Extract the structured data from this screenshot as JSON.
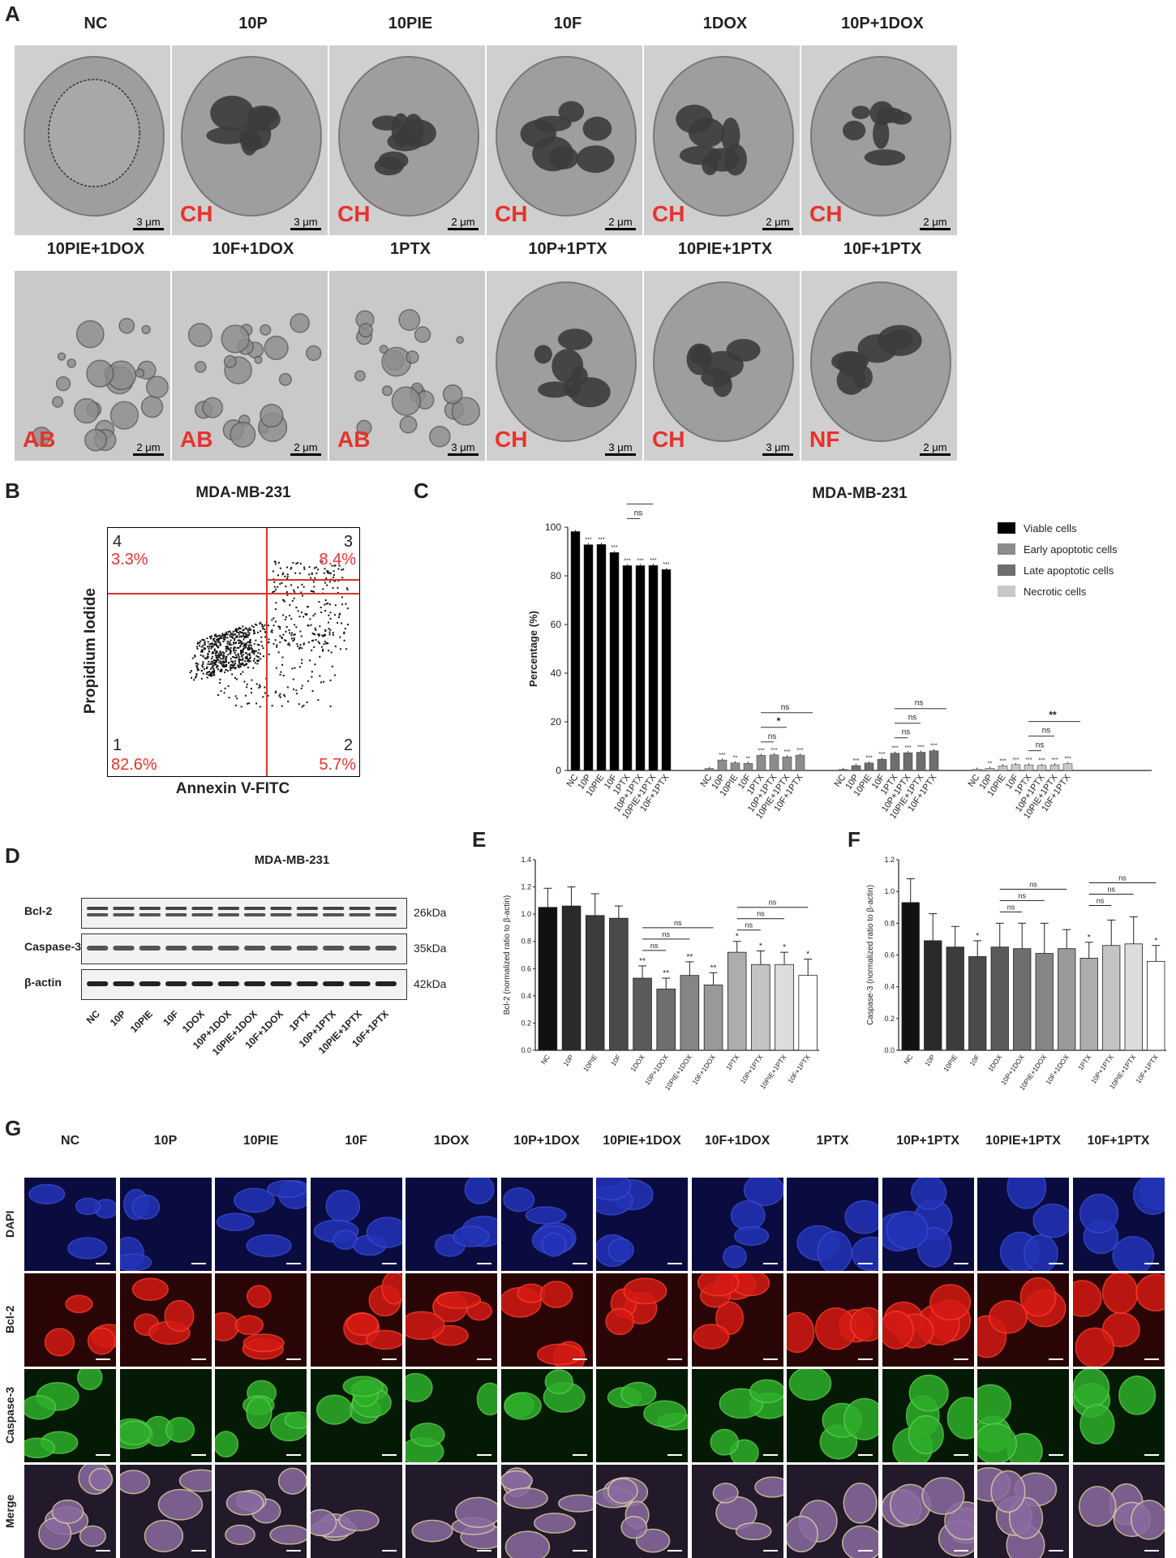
{
  "panel_letters": {
    "a": "A",
    "b": "B",
    "c": "C",
    "d": "D",
    "e": "E",
    "f": "F",
    "g": "G"
  },
  "panel_a": {
    "cells": [
      {
        "title": "NC",
        "code": "",
        "scale": "3 μm"
      },
      {
        "title": "10P",
        "code": "CH",
        "scale": "3 μm"
      },
      {
        "title": "10PIE",
        "code": "CH",
        "scale": "2 μm"
      },
      {
        "title": "10F",
        "code": "CH",
        "scale": "2 μm"
      },
      {
        "title": "1DOX",
        "code": "CH",
        "scale": "2 μm"
      },
      {
        "title": "10P+1DOX",
        "code": "CH",
        "scale": "2 μm"
      },
      {
        "title": "10PIE+1DOX",
        "code": "AB",
        "scale": "2 μm"
      },
      {
        "title": "10F+1DOX",
        "code": "AB",
        "scale": "2 μm"
      },
      {
        "title": "1PTX",
        "code": "AB",
        "scale": "3 μm"
      },
      {
        "title": "10P+1PTX",
        "code": "CH",
        "scale": "3 μm"
      },
      {
        "title": "10PIE+1PTX",
        "code": "CH",
        "scale": "3 μm"
      },
      {
        "title": "10F+1PTX",
        "code": "NF",
        "scale": "2 μm"
      }
    ]
  },
  "panel_b": {
    "title": "MDA-MB-231",
    "xlabel": "Annexin V-FITC",
    "ylabel": "Propidium Iodide",
    "quadrants": [
      {
        "num": "1",
        "pct": "82.6%"
      },
      {
        "num": "2",
        "pct": "5.7%"
      },
      {
        "num": "3",
        "pct": "8.4%"
      },
      {
        "num": "4",
        "pct": "3.3%"
      }
    ]
  },
  "panel_d": {
    "title": "MDA-MB-231",
    "bands": [
      {
        "name": "Bcl-2",
        "kda": "26kDa"
      },
      {
        "name": "Caspase-3",
        "kda": "35kDa"
      },
      {
        "name": "β-actin",
        "kda": "42kDa"
      }
    ],
    "lanes": [
      "NC",
      "10P",
      "10PIE",
      "10F",
      "1DOX",
      "10P+1DOX",
      "10PIE+1DOX",
      "10F+1DOX",
      "1PTX",
      "10P+1PTX",
      "10PIE+1PTX",
      "10F+1PTX"
    ]
  },
  "panel_g": {
    "columns": [
      "NC",
      "10P",
      "10PIE",
      "10F",
      "1DOX",
      "10P+1DOX",
      "10PIE+1DOX",
      "10F+1DOX",
      "1PTX",
      "10P+1PTX",
      "10PIE+1PTX",
      "10F+1PTX"
    ],
    "rows": [
      "DAPI",
      "Bcl-2",
      "Caspase-3",
      "Merge"
    ]
  },
  "colors": {
    "red": "#e8322c",
    "blue": "#1d2fa8",
    "redfl": "#c81515",
    "greenfl": "#2ea82a"
  },
  "chart_data": [
    {
      "type": "bar",
      "panel": "C",
      "title": "MDA-MB-231",
      "ylabel": "Percentage (%)",
      "ylim": [
        0,
        100
      ],
      "yticks": [
        0,
        20,
        40,
        60,
        80,
        100
      ],
      "categories": [
        "NC",
        "10P",
        "10PIE",
        "10F",
        "1PTX",
        "10P+1PTX",
        "10PIE+1PTX",
        "10F+1PTX"
      ],
      "series": [
        {
          "name": "Viable cells",
          "color": "#000000",
          "values": [
            98.2,
            92.8,
            92.9,
            89.6,
            84.2,
            84.2,
            84.3,
            82.6
          ],
          "sig": [
            "",
            "***",
            "***",
            "***",
            "***",
            "***",
            "***",
            "***"
          ]
        },
        {
          "name": "Early apoptotic cells",
          "color": "#8c8c8c",
          "values": [
            0.8,
            4.3,
            3.1,
            2.9,
            6.2,
            6.4,
            5.6,
            6.3
          ],
          "sig": [
            "",
            "***",
            "**",
            "**",
            "***",
            "***",
            "***",
            "***"
          ]
        },
        {
          "name": "Late apoptotic cells",
          "color": "#6e6e6e",
          "values": [
            0.4,
            2.0,
            3.1,
            4.6,
            7.1,
            7.3,
            7.5,
            8.1
          ],
          "sig": [
            "",
            "***",
            "***",
            "***",
            "***",
            "***",
            "***",
            "***"
          ]
        },
        {
          "name": "Necrotic cells",
          "color": "#c8c8c8",
          "values": [
            0.5,
            0.9,
            1.9,
            2.4,
            2.3,
            2.1,
            2.3,
            2.8
          ],
          "sig": [
            "",
            "**",
            "***",
            "***",
            "***",
            "***",
            "***",
            "***"
          ]
        }
      ],
      "legend": "top-right",
      "comparisons": [
        {
          "series": 0,
          "labels": [
            "ns",
            "ns",
            "ns",
            "**"
          ]
        },
        {
          "series": 1,
          "labels": [
            "ns",
            "*",
            "ns"
          ]
        },
        {
          "series": 2,
          "labels": [
            "ns",
            "ns",
            "ns"
          ]
        },
        {
          "series": 3,
          "labels": [
            "ns",
            "ns",
            "**"
          ]
        }
      ]
    },
    {
      "type": "bar",
      "panel": "E",
      "ylabel": "Bcl-2 (normalized ratio to β-actin)",
      "ylim": [
        0,
        1.4
      ],
      "yticks": [
        "0.0",
        "0.2",
        "0.4",
        "0.6",
        "0.8",
        "1.0",
        "1.2",
        "1.4"
      ],
      "categories": [
        "NC",
        "10P",
        "10PIE",
        "10F",
        "1DOX",
        "10P+1DOX",
        "10PIE+1DOX",
        "10F+1DOX",
        "1PTX",
        "10P+1PTX",
        "10PIE+1PTX",
        "10F+1PTX"
      ],
      "values": [
        1.05,
        1.06,
        0.99,
        0.97,
        0.53,
        0.45,
        0.55,
        0.48,
        0.72,
        0.63,
        0.63,
        0.55
      ],
      "errors": [
        0.14,
        0.14,
        0.16,
        0.09,
        0.09,
        0.08,
        0.1,
        0.09,
        0.08,
        0.1,
        0.09,
        0.12
      ],
      "sig": [
        "",
        "",
        "",
        "",
        "**",
        "**",
        "**",
        "**",
        "*",
        "*",
        "*",
        "*"
      ],
      "colors": [
        "#111111",
        "#2a2a2a",
        "#3c3c3c",
        "#4a4a4a",
        "#5a5a5a",
        "#6e6e6e",
        "#858585",
        "#999999",
        "#adadad",
        "#c3c3c3",
        "#dcdcdc",
        "#ffffff"
      ],
      "comparisons": [
        "ns",
        "ns",
        "ns",
        "ns",
        "ns",
        "ns"
      ]
    },
    {
      "type": "bar",
      "panel": "F",
      "ylabel": "Caspase-3 (normalized ratio to β-actin)",
      "ylim": [
        0,
        1.2
      ],
      "yticks": [
        "0.0",
        "0.2",
        "0.4",
        "0.6",
        "0.8",
        "1.0",
        "1.2"
      ],
      "categories": [
        "NC",
        "10P",
        "10PIE",
        "10F",
        "1DOX",
        "10P+1DOX",
        "10PIE+1DOX",
        "10F+1DOX",
        "1PTX",
        "10P+1PTX",
        "10PIE+1PTX",
        "10F+1PTX"
      ],
      "values": [
        0.93,
        0.69,
        0.65,
        0.59,
        0.65,
        0.64,
        0.61,
        0.64,
        0.58,
        0.66,
        0.67,
        0.56
      ],
      "errors": [
        0.15,
        0.17,
        0.13,
        0.1,
        0.15,
        0.16,
        0.19,
        0.12,
        0.1,
        0.16,
        0.17,
        0.1
      ],
      "sig": [
        "",
        "",
        "",
        "*",
        "",
        "",
        "",
        "",
        "*",
        "",
        "",
        "*"
      ],
      "colors": [
        "#111111",
        "#2a2a2a",
        "#3c3c3c",
        "#4a4a4a",
        "#5a5a5a",
        "#6e6e6e",
        "#858585",
        "#999999",
        "#adadad",
        "#c3c3c3",
        "#dcdcdc",
        "#ffffff"
      ],
      "comparisons": [
        "ns",
        "ns",
        "ns",
        "ns",
        "ns",
        "ns"
      ]
    }
  ]
}
